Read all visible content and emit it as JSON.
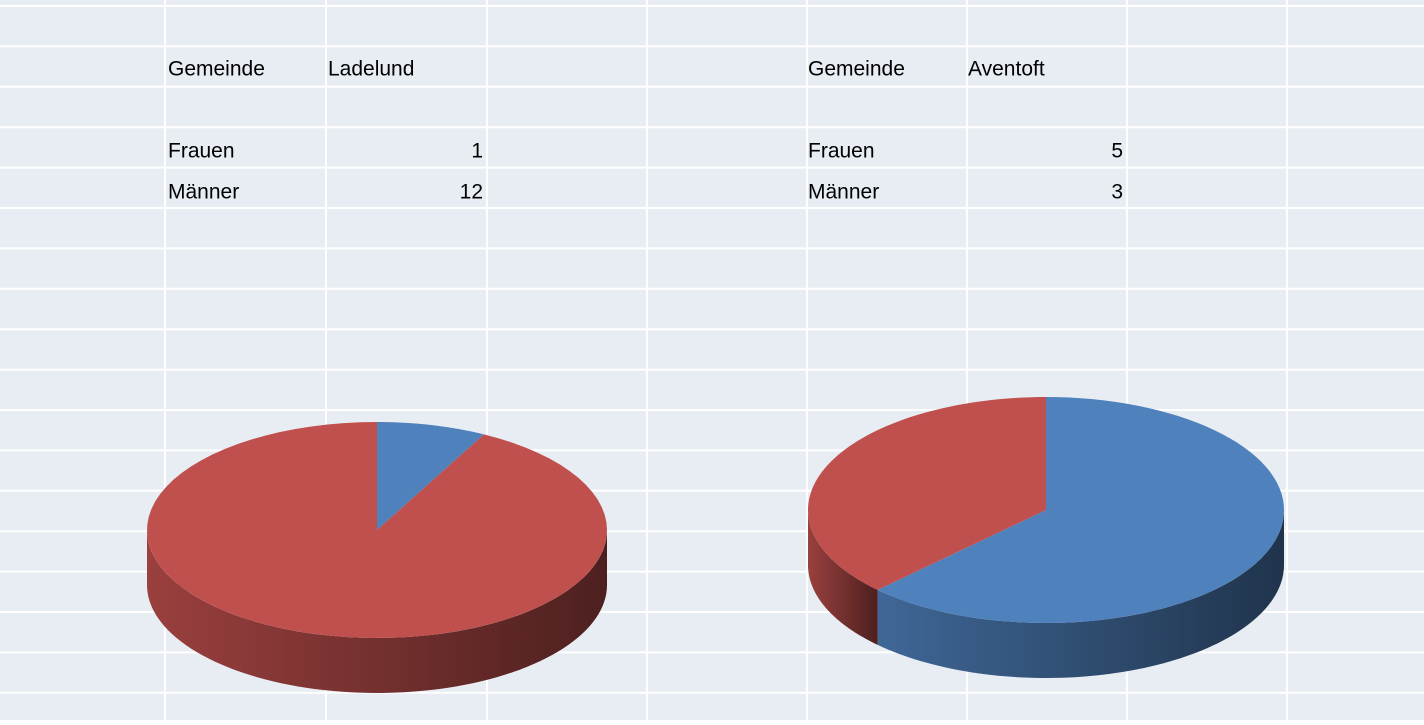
{
  "chart_data": [
    {
      "type": "pie",
      "label": "Gemeinde",
      "name": "Ladelund",
      "categories": [
        "Frauen",
        "Männer"
      ],
      "values": [
        1,
        12
      ],
      "colors": [
        "#4f81bd",
        "#c0504d"
      ]
    },
    {
      "type": "pie",
      "label": "Gemeinde",
      "name": "Aventoft",
      "categories": [
        "Frauen",
        "Männer"
      ],
      "values": [
        5,
        3
      ],
      "colors": [
        "#4f81bd",
        "#c0504d"
      ]
    }
  ]
}
